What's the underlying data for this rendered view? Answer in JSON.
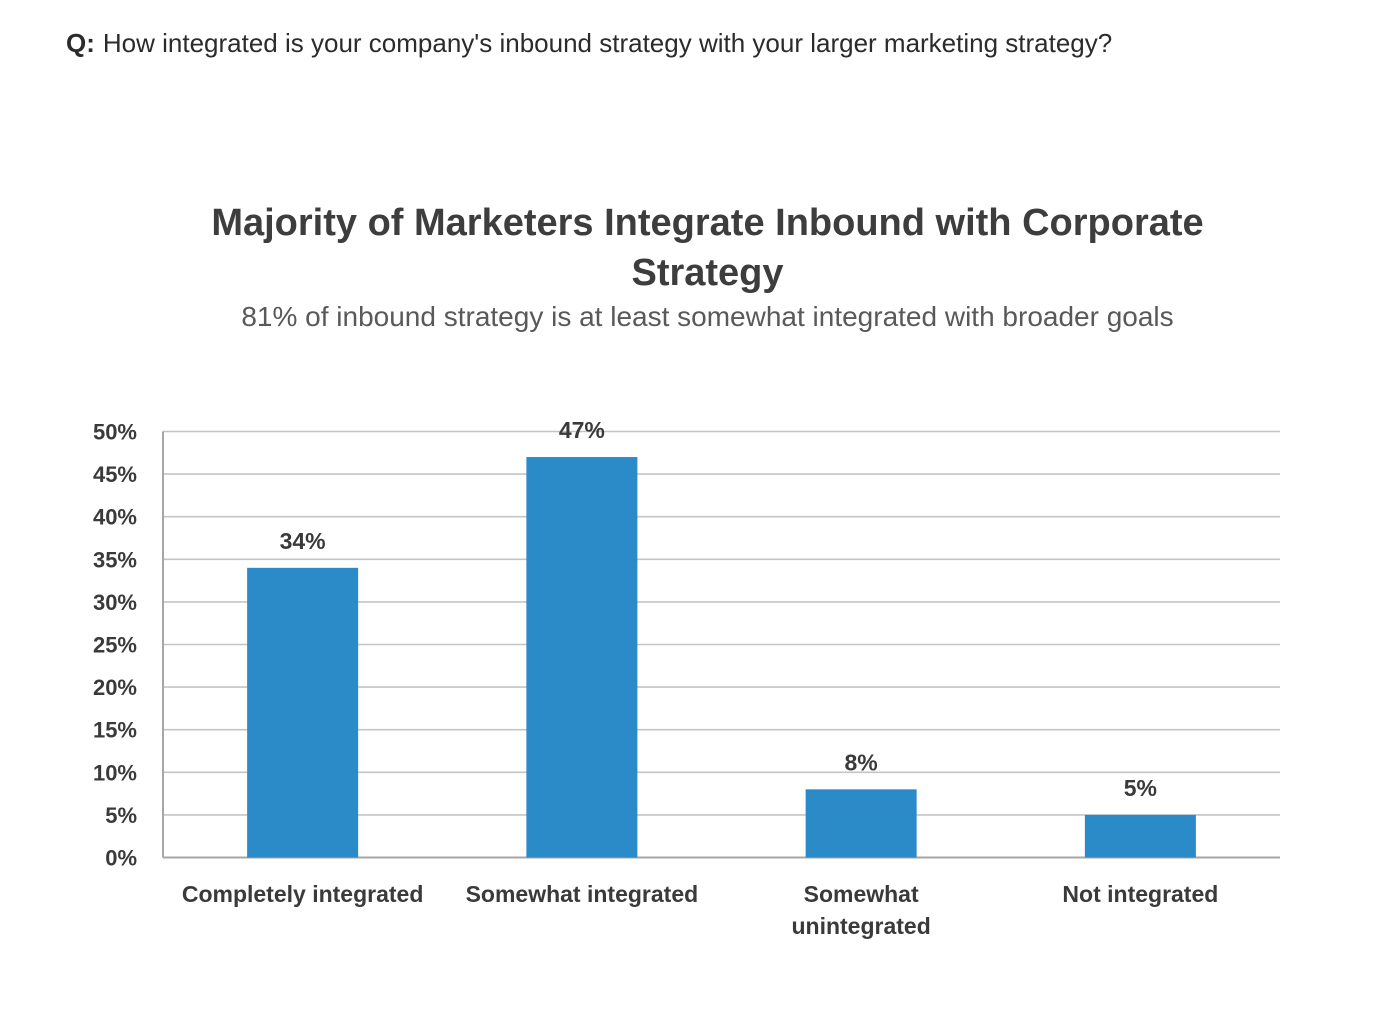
{
  "question": {
    "prefix": "Q:",
    "text": "How integrated is your company's inbound strategy with your larger marketing strategy?"
  },
  "chart_data": {
    "type": "bar",
    "title": "Majority of Marketers Integrate Inbound with Corporate Strategy",
    "subtitle": "81% of inbound strategy is at least somewhat integrated with broader goals",
    "categories": [
      [
        "Completely integrated"
      ],
      [
        "Somewhat integrated"
      ],
      [
        "Somewhat",
        "unintegrated"
      ],
      [
        "Not integrated"
      ]
    ],
    "values": [
      34,
      47,
      8,
      5
    ],
    "data_labels": [
      "34%",
      "47%",
      "8%",
      "5%"
    ],
    "y_ticks": [
      "0%",
      "5%",
      "10%",
      "15%",
      "20%",
      "25%",
      "30%",
      "35%",
      "40%",
      "45%",
      "50%"
    ],
    "ylim": [
      0,
      50
    ],
    "y_step": 5,
    "grid": true,
    "legend": "none",
    "bar_color": "#2b8ac8",
    "grid_color": "#c4c4c4",
    "axis_color": "#a6a6a6"
  }
}
